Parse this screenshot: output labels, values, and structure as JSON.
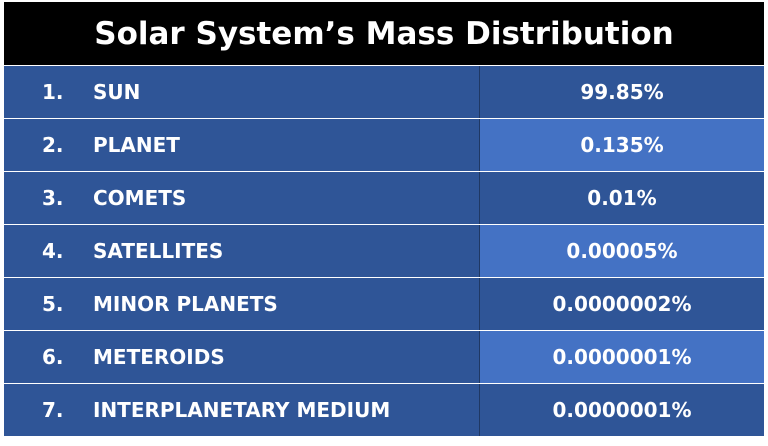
{
  "header": {
    "title": "Solar System’s Mass Distribution"
  },
  "table": {
    "rows": [
      [
        "1.",
        "SUN",
        "99.85%"
      ],
      [
        "2.",
        "PLANET",
        "0.135%"
      ],
      [
        "3.",
        "COMETS",
        "0.01%"
      ],
      [
        "4.",
        "SATELLITES",
        "0.00005%"
      ],
      [
        "5.",
        "MINOR PLANETS",
        "0.0000002%"
      ],
      [
        "6.",
        "METEROIDS",
        "0.0000001%"
      ],
      [
        "7.",
        "INTERPLANETARY MEDIUM",
        "0.0000001%"
      ]
    ]
  }
}
